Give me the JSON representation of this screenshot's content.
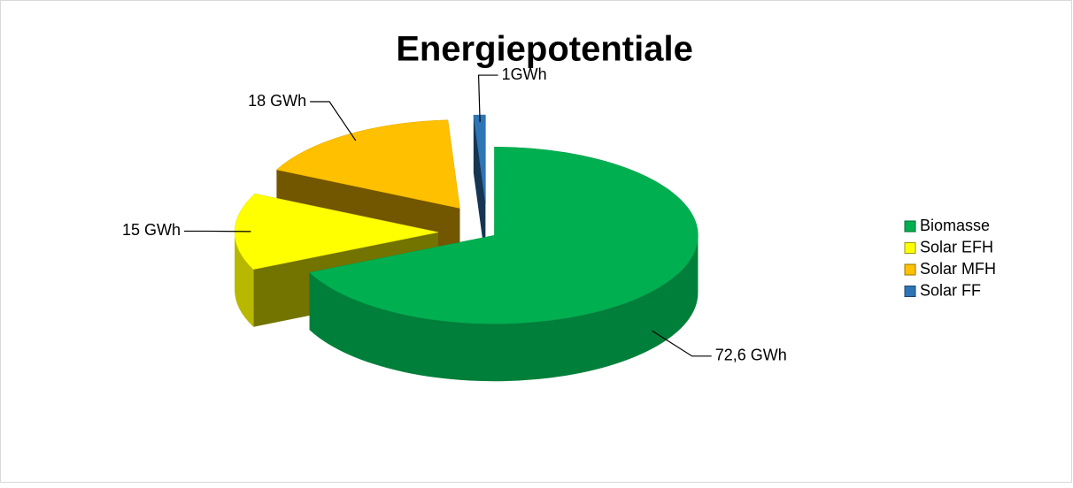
{
  "chart_data": {
    "type": "pie3d",
    "title": "Energiepotentiale",
    "categories": [
      "Biomasse",
      "Solar EFH",
      "Solar MFH",
      "Solar FF"
    ],
    "values": [
      72.6,
      15,
      18,
      1
    ],
    "value_labels": [
      "72,6 GWh",
      "15 GWh",
      "18 GWh",
      "1GWh"
    ],
    "colors": [
      "#00b050",
      "#ffff00",
      "#ffc000",
      "#2e75b6"
    ],
    "legend": "right"
  }
}
